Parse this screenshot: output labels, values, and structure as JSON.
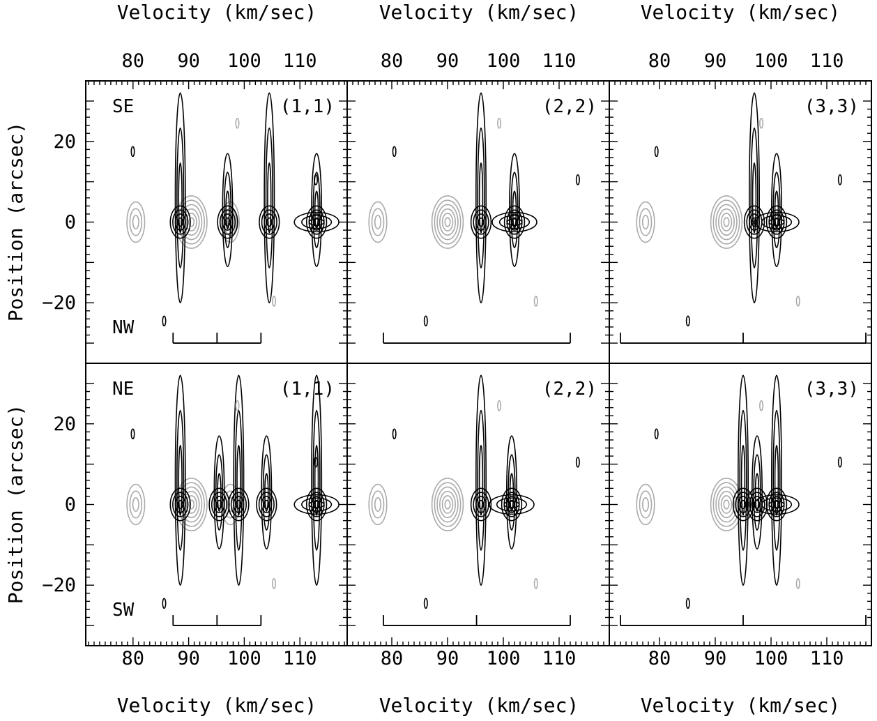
{
  "figure": {
    "x_axis_title": "Velocity (km/sec)",
    "y_axis_title": "Position (arcsec)",
    "x_ticks": [
      80,
      90,
      100,
      110
    ],
    "y_ticks": [
      20,
      0,
      -20
    ],
    "y_tick_labels": [
      "20",
      "0",
      "−20"
    ],
    "colors": {
      "positive_contour": "#000000",
      "negative_contour": "#aaaaaa",
      "frame": "#000000"
    }
  },
  "chart_data": [
    {
      "type": "contour",
      "transition": "(1,1)",
      "cut_top_label": "SE",
      "cut_bottom_label": "NW",
      "xlabel": "Velocity (km/sec)",
      "ylabel": "Position (arcsec)",
      "xlim": [
        71.5,
        118.5
      ],
      "ylim": [
        -35,
        35
      ],
      "hyperfine_markers": [
        87.2,
        95.1,
        103.0
      ],
      "gray_peaks_velocity": [
        80.5,
        90.5,
        97.5
      ],
      "black_ridges_velocity": [
        88.5,
        97.0,
        104.5,
        113.0
      ]
    },
    {
      "type": "contour",
      "transition": "(2,2)",
      "cut_top_label": "",
      "cut_bottom_label": "",
      "xlabel": "Velocity (km/sec)",
      "ylabel": "",
      "xlim": [
        72.0,
        119.0
      ],
      "ylim": [
        -35,
        35
      ],
      "hyperfine_markers": [
        78.5,
        112.0
      ],
      "gray_peaks_velocity": [
        77.5,
        90.0
      ],
      "black_ridges_velocity": [
        96.0,
        102.0
      ]
    },
    {
      "type": "contour",
      "transition": "(3,3)",
      "cut_top_label": "",
      "cut_bottom_label": "",
      "xlabel": "Velocity (km/sec)",
      "ylabel": "",
      "xlim": [
        71.0,
        118.0
      ],
      "ylim": [
        -35,
        35
      ],
      "hyperfine_markers": [
        73.0,
        95.0,
        117.0
      ],
      "gray_peaks_velocity": [
        77.5,
        92.0
      ],
      "black_ridges_velocity": [
        97.0,
        101.0
      ]
    },
    {
      "type": "contour",
      "transition": "(1,1)",
      "cut_top_label": "NE",
      "cut_bottom_label": "SW",
      "xlabel": "Velocity (km/sec)",
      "ylabel": "Position (arcsec)",
      "xlim": [
        71.5,
        118.5
      ],
      "ylim": [
        -35,
        35
      ],
      "hyperfine_markers": [
        87.2,
        95.1,
        103.0
      ],
      "gray_peaks_velocity": [
        80.5,
        90.5,
        97.5
      ],
      "black_ridges_velocity": [
        88.5,
        95.5,
        99.0,
        104.0,
        113.0
      ]
    },
    {
      "type": "contour",
      "transition": "(2,2)",
      "cut_top_label": "",
      "cut_bottom_label": "",
      "xlabel": "Velocity (km/sec)",
      "ylabel": "",
      "xlim": [
        72.0,
        119.0
      ],
      "ylim": [
        -35,
        35
      ],
      "hyperfine_markers": [
        78.5,
        95.2,
        112.0
      ],
      "gray_peaks_velocity": [
        77.5,
        90.0
      ],
      "black_ridges_velocity": [
        96.0,
        101.5
      ]
    },
    {
      "type": "contour",
      "transition": "(3,3)",
      "cut_top_label": "",
      "cut_bottom_label": "",
      "xlabel": "Velocity (km/sec)",
      "ylabel": "",
      "xlim": [
        71.0,
        118.0
      ],
      "ylim": [
        -35,
        35
      ],
      "hyperfine_markers": [
        73.0,
        95.0,
        117.0
      ],
      "gray_peaks_velocity": [
        77.5,
        92.0
      ],
      "black_ridges_velocity": [
        95.0,
        97.5,
        101.0
      ]
    }
  ]
}
